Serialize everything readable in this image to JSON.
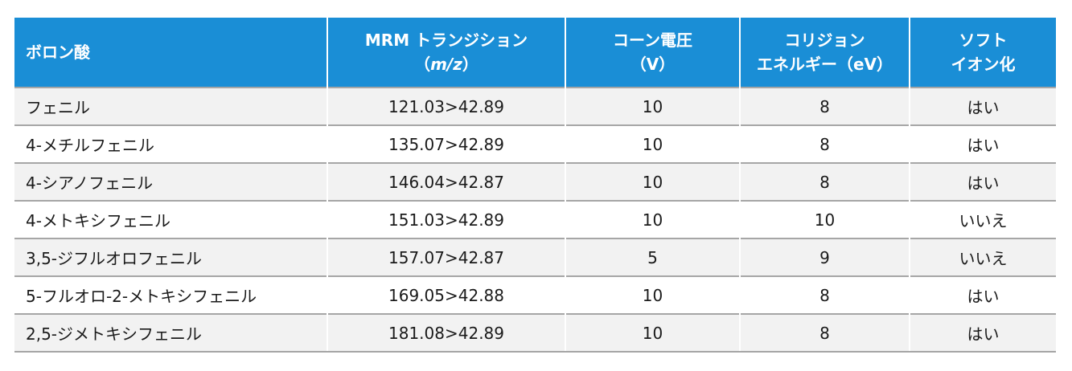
{
  "headers": {
    "col1": "ボロン酸",
    "col2_line1": "MRM トランジション",
    "col2_line2_open": "（",
    "col2_line2_italic": "m/z",
    "col2_line2_close": "）",
    "col3_line1": "コーン電圧",
    "col3_line2": "（V）",
    "col4_line1": "コリジョン",
    "col4_line2": "エネルギー（eV）",
    "col5_line1": "ソフト",
    "col5_line2": "イオン化"
  },
  "rows": [
    {
      "name": "フェニル",
      "mrm": "121.03>42.89",
      "cone": "10",
      "collision": "8",
      "soft": "はい"
    },
    {
      "name": "4-メチルフェニル",
      "mrm": "135.07>42.89",
      "cone": "10",
      "collision": "8",
      "soft": "はい"
    },
    {
      "name": "4-シアノフェニル",
      "mrm": "146.04>42.87",
      "cone": "10",
      "collision": "8",
      "soft": "はい"
    },
    {
      "name": "4-メトキシフェニル",
      "mrm": "151.03>42.89",
      "cone": "10",
      "collision": "10",
      "soft": "いいえ"
    },
    {
      "name": "3,5-ジフルオロフェニル",
      "mrm": "157.07>42.87",
      "cone": "5",
      "collision": "9",
      "soft": "いいえ"
    },
    {
      "name": "5-フルオロ-2-メトキシフェニル",
      "mrm": "169.05>42.88",
      "cone": "10",
      "collision": "8",
      "soft": "はい"
    },
    {
      "name": "2,5-ジメトキシフェニル",
      "mrm": "181.08>42.89",
      "cone": "10",
      "collision": "8",
      "soft": "はい"
    }
  ]
}
